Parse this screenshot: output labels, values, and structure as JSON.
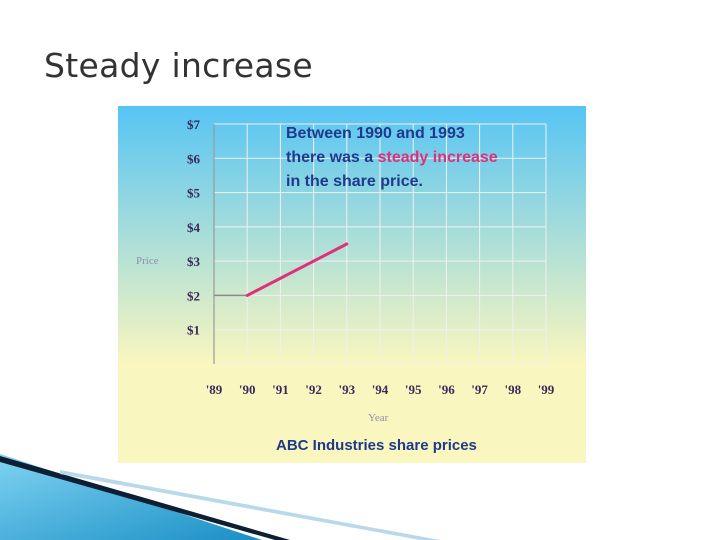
{
  "slide": {
    "title": "Steady increase"
  },
  "chart_data": {
    "type": "line",
    "annotation": {
      "line1": "Between 1990 and 1993",
      "line2_prefix": "there was a ",
      "line2_highlight": "steady increase",
      "line3": "in the share price."
    },
    "caption": "ABC Industries share prices",
    "xlabel": "Year",
    "ylabel": "Price",
    "x_tick_labels": [
      "'89",
      "'90",
      "'91",
      "'92",
      "'93",
      "'94",
      "'95",
      "'96",
      "'97",
      "'98",
      "'99"
    ],
    "y_tick_labels": [
      "$1",
      "$2",
      "$3",
      "$4",
      "$5",
      "$6",
      "$7"
    ],
    "x_range": [
      1989,
      1999
    ],
    "ylim": [
      0,
      7
    ],
    "grid": true,
    "series": [
      {
        "color": "#e0307a",
        "points": [
          [
            1990,
            2.0
          ],
          [
            1993,
            3.5
          ]
        ]
      }
    ],
    "reference_line": {
      "value": 2.0,
      "from": 1989,
      "to": 1990,
      "color": "#8a8a8a"
    },
    "colors": {
      "background_top": "#56c4f4",
      "background_bottom": "#f9f6bf",
      "grid": "#f0f0f0",
      "annotation": "#1f3a8a",
      "highlight": "#e0307a"
    }
  }
}
